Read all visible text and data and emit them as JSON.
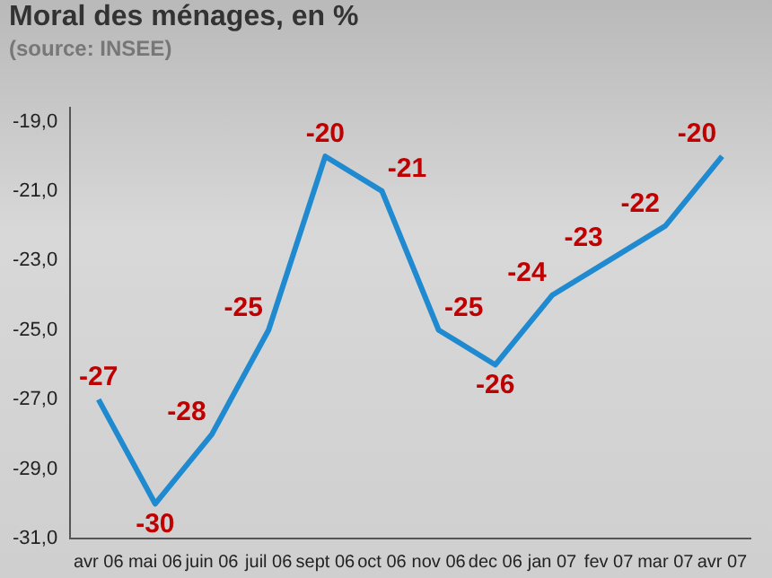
{
  "chart_data": {
    "type": "line",
    "title": "Moral des ménages, en %",
    "subtitle": "(source: INSEE)",
    "categories": [
      "avr 06",
      "mai 06",
      "juin 06",
      "juil 06",
      "sept 06",
      "oct 06",
      "nov 06",
      "dec 06",
      "jan 07",
      "fev 07",
      "mar 07",
      "avr 07"
    ],
    "series": [
      {
        "color": "#1f8ad0",
        "values": [
          -27,
          -30,
          -28,
          -25,
          -20,
          -21,
          -25,
          -26,
          -24,
          -23,
          -22,
          -20
        ]
      }
    ],
    "ylim": [
      -31,
      -18.6
    ],
    "yticks": [
      {
        "value": -31,
        "label": "-31,0"
      },
      {
        "value": -29,
        "label": "-29,0"
      },
      {
        "value": -27,
        "label": "-27,0"
      },
      {
        "value": -25,
        "label": "-25,0"
      },
      {
        "value": -23,
        "label": "-23,0"
      },
      {
        "value": -21,
        "label": "-21,0"
      },
      {
        "value": -19,
        "label": "-19,0"
      }
    ],
    "data_labels": true,
    "grid": false,
    "legend": false,
    "marker": "none",
    "line_style": "solid"
  }
}
